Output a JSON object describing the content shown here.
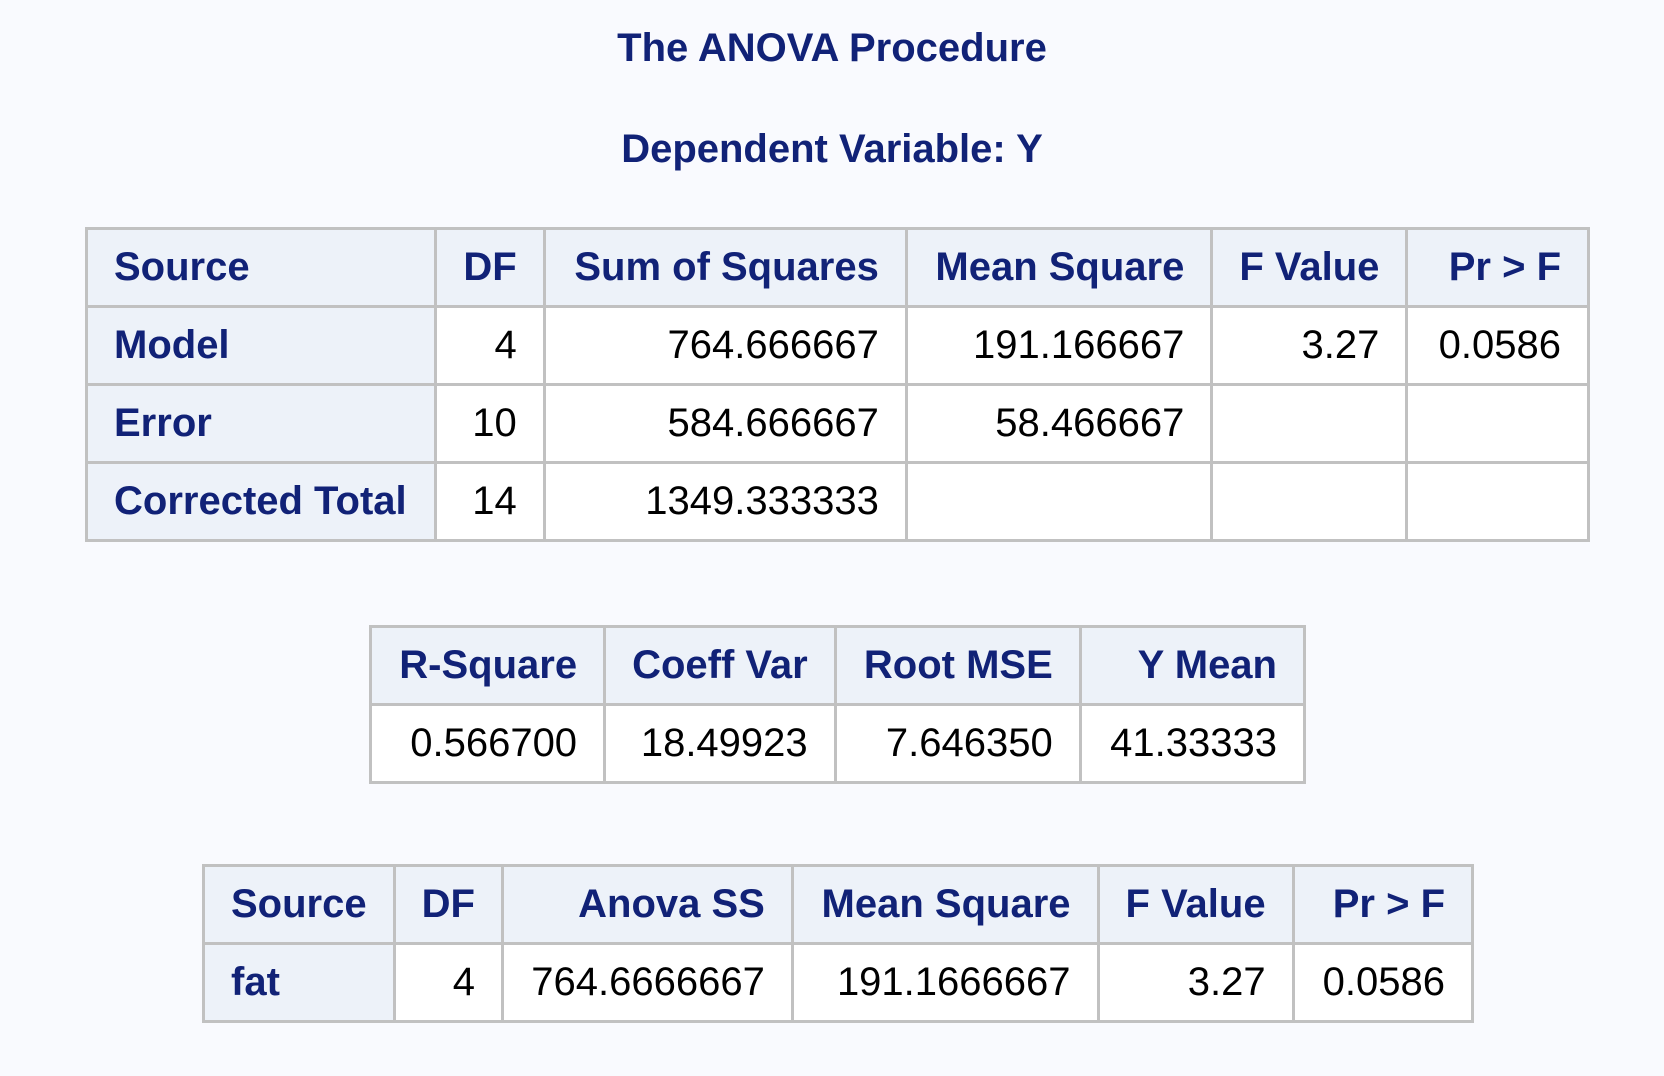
{
  "procedure_title": "The ANOVA Procedure",
  "dependent_variable_title": "Dependent Variable: Y",
  "anova_table": {
    "headers": [
      "Source",
      "DF",
      "Sum of Squares",
      "Mean Square",
      "F Value",
      "Pr > F"
    ],
    "rows": [
      {
        "source": "Model",
        "df": "4",
        "ss": "764.666667",
        "ms": "191.166667",
        "f": "3.27",
        "p": "0.0586"
      },
      {
        "source": "Error",
        "df": "10",
        "ss": "584.666667",
        "ms": "58.466667",
        "f": "",
        "p": ""
      },
      {
        "source": "Corrected Total",
        "df": "14",
        "ss": "1349.333333",
        "ms": "",
        "f": "",
        "p": ""
      }
    ]
  },
  "fit_table": {
    "headers": [
      "R-Square",
      "Coeff Var",
      "Root MSE",
      "Y Mean"
    ],
    "values": [
      "0.566700",
      "18.49923",
      "7.646350",
      "41.33333"
    ]
  },
  "type_ss_table": {
    "headers": [
      "Source",
      "DF",
      "Anova SS",
      "Mean Square",
      "F Value",
      "Pr > F"
    ],
    "rows": [
      {
        "source": "fat",
        "df": "4",
        "ss": "764.6666667",
        "ms": "191.1666667",
        "f": "3.27",
        "p": "0.0586"
      }
    ]
  }
}
